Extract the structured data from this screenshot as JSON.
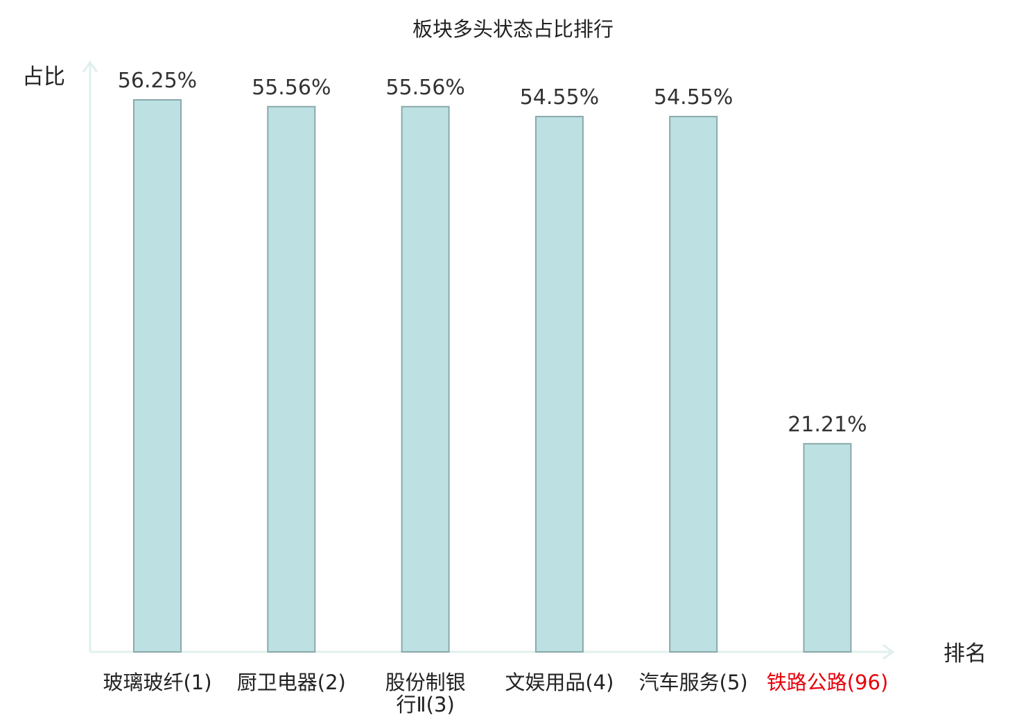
{
  "chart_data": {
    "type": "bar",
    "title": "板块多头状态占比排行",
    "ylabel": "占比",
    "xlabel": "排名",
    "categories": [
      [
        "玻璃玻纤(1)"
      ],
      [
        "厨卫电器(2)"
      ],
      [
        "股份制银",
        "行Ⅱ(3)"
      ],
      [
        "文娱用品(4)"
      ],
      [
        "汽车服务(5)"
      ],
      [
        "铁路公路(96)"
      ]
    ],
    "values": [
      56.25,
      55.56,
      55.56,
      54.55,
      54.55,
      21.21
    ],
    "value_labels": [
      "56.25%",
      "55.56%",
      "55.56%",
      "54.55%",
      "54.55%",
      "21.21%"
    ],
    "highlight_index": 5,
    "ylim": [
      0,
      60
    ],
    "grid": false,
    "colors": {
      "bar_fill": "#bde0e2",
      "bar_stroke": "#8aa9aa",
      "axis": "#dff0ee",
      "text": "#333333",
      "highlight_text": "#e8000b"
    }
  }
}
